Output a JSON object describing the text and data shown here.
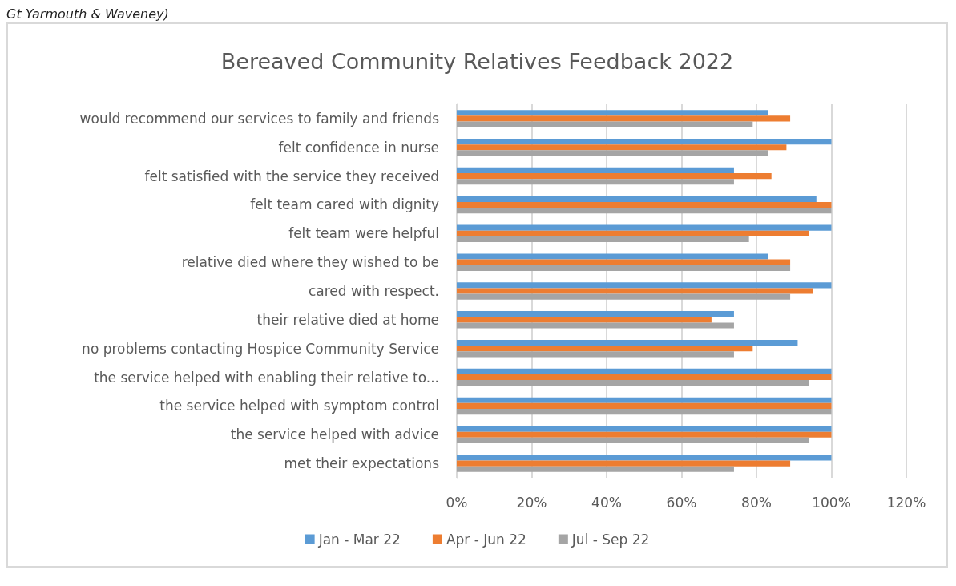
{
  "chart_data": {
    "type": "bar",
    "orientation": "horizontal",
    "title": "Bereaved Community Relatives Feedback 2022",
    "annotations": [
      "Gt Yarmouth & Waveney)"
    ],
    "categories": [
      "would recommend our services to family and friends",
      "felt confidence in nurse",
      "felt satisfied with the service they received",
      "felt team cared with dignity",
      "felt team were helpful",
      "relative died where they wished to be",
      "cared with respect.",
      "their relative died at home",
      "no problems contacting Hospice Community Service",
      "the service helped with enabling their relative to...",
      "the service helped with symptom control",
      "the service helped with advice",
      "met their expectations"
    ],
    "series": [
      {
        "name": "Jan - Mar 22",
        "color": "#5b9bd5",
        "values": [
          83,
          100,
          74,
          96,
          100,
          83,
          100,
          74,
          91,
          100,
          100,
          100,
          100
        ]
      },
      {
        "name": "Apr - Jun 22",
        "color": "#ed7d31",
        "values": [
          89,
          88,
          84,
          100,
          94,
          89,
          95,
          68,
          79,
          100,
          100,
          100,
          89
        ]
      },
      {
        "name": "Jul - Sep 22",
        "color": "#a5a5a5",
        "values": [
          79,
          83,
          74,
          100,
          78,
          89,
          89,
          74,
          74,
          94,
          100,
          94,
          74
        ]
      }
    ],
    "xlim": [
      0,
      120
    ],
    "xticks": [
      {
        "value": 0,
        "label": "0%"
      },
      {
        "value": 20,
        "label": "20%"
      },
      {
        "value": 40,
        "label": "40%"
      },
      {
        "value": 60,
        "label": "60%"
      },
      {
        "value": 80,
        "label": "80%"
      },
      {
        "value": 100,
        "label": "100%"
      },
      {
        "value": 120,
        "label": "120%"
      }
    ],
    "grid": "x",
    "legend": "bottom"
  }
}
